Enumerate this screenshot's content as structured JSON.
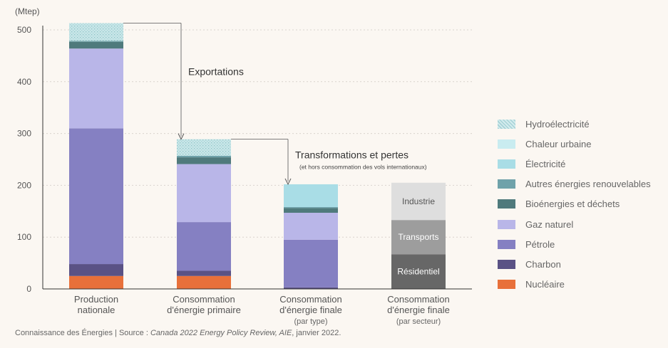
{
  "chart_data": {
    "type": "bar",
    "unit_label": "(Mtep)",
    "ylim": [
      0,
      510
    ],
    "yticks": [
      0,
      100,
      200,
      300,
      400,
      500
    ],
    "grid": true,
    "categories": [
      {
        "label": [
          "Production",
          "nationale"
        ],
        "sub": ""
      },
      {
        "label": [
          "Consommation",
          "d'énergie primaire"
        ],
        "sub": ""
      },
      {
        "label": [
          "Consommation",
          "d'énergie finale"
        ],
        "sub": "(par type)"
      },
      {
        "label": [
          "Consommation",
          "d'énergie finale"
        ],
        "sub": "(par secteur)"
      }
    ],
    "series": [
      {
        "name": "Hydroélectricité",
        "color": "#bfe3e6",
        "pattern": true,
        "values": [
          34,
          32,
          0,
          0
        ]
      },
      {
        "name": "Chaleur urbaine",
        "color": "#c9ecf0",
        "pattern": false,
        "values": [
          0,
          0,
          0,
          0
        ]
      },
      {
        "name": "Électricité",
        "color": "#a9dde6",
        "pattern": false,
        "values": [
          0,
          0,
          44,
          0
        ]
      },
      {
        "name": "Autres énergies renouvelables",
        "color": "#6fa2aa",
        "pattern": false,
        "values": [
          2,
          3,
          2,
          0
        ]
      },
      {
        "name": "Bioénergies et déchets",
        "color": "#4f7a7c",
        "pattern": false,
        "values": [
          13,
          13,
          9,
          0
        ]
      },
      {
        "name": "Gaz naturel",
        "color": "#b9b6e8",
        "pattern": false,
        "values": [
          154,
          112,
          52,
          0
        ]
      },
      {
        "name": "Pétrole",
        "color": "#8580c2",
        "pattern": false,
        "values": [
          262,
          94,
          92,
          0
        ]
      },
      {
        "name": "Charbon",
        "color": "#5a5285",
        "pattern": false,
        "values": [
          23,
          10,
          3,
          0
        ]
      },
      {
        "name": "Nucléaire",
        "color": "#e8703a",
        "pattern": false,
        "values": [
          25,
          25,
          0,
          0
        ]
      }
    ],
    "sector_bar": {
      "category_index": 3,
      "segments": [
        {
          "name": "Résidentiel",
          "value": 67,
          "color": "#676767",
          "text_color": "#ffffff"
        },
        {
          "name": "Transports",
          "value": 66,
          "color": "#9d9d9d",
          "text_color": "#ffffff"
        },
        {
          "name": "Industrie",
          "value": 72,
          "color": "#dedede",
          "text_color": "#555555"
        }
      ]
    },
    "annotations": [
      {
        "text": "Exportations",
        "sub": "",
        "from_category": 0,
        "to_category": 1
      },
      {
        "text": "Transformations et pertes",
        "sub": "(et hors consommation des vols internationaux)",
        "from_category": 1,
        "to_category": 2
      }
    ],
    "legend_position": "right"
  },
  "source": {
    "prefix": "Connaissance des Énergies | Source : ",
    "italic": "Canada 2022 Energy Policy Review, AIE",
    "suffix": ", janvier 2022."
  }
}
